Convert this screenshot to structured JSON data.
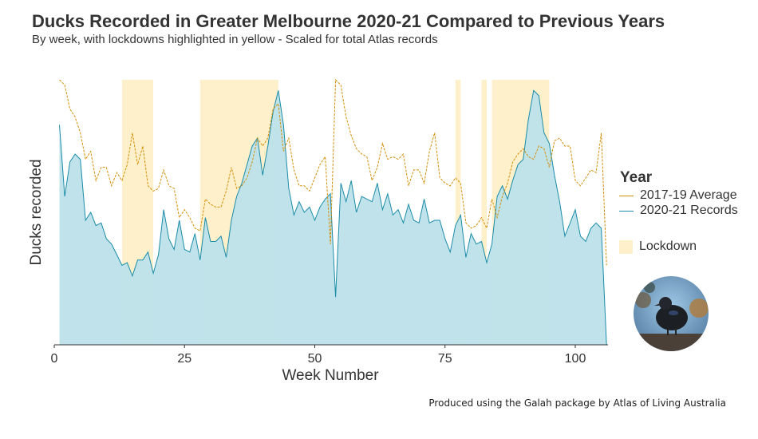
{
  "title": "Ducks Recorded in Greater Melbourne 2020-21 Compared to Previous Years",
  "subtitle": "By week, with lockdowns highlighted in yellow - Scaled for total Atlas records",
  "caption": "Produced using the Galah package by Atlas of Living Australia",
  "legend": {
    "title": "Year",
    "avg_label": "2017-19 Average",
    "records_label": "2020-21 Records",
    "lockdown_label": "Lockdown"
  },
  "colors": {
    "average_line": "#D4900A",
    "records_line": "#1A8CA8",
    "records_fill": "#BDE2EA",
    "lockdown": "#FFF0CC"
  },
  "chart_data": {
    "type": "area",
    "xlabel": "Week Number",
    "ylabel": "Ducks recorded",
    "xlim": [
      0,
      106
    ],
    "ylim": [
      0,
      100
    ],
    "x_ticks": [
      0,
      25,
      50,
      75,
      100
    ],
    "y_ticks_shown": false,
    "grid": false,
    "legend_position": "right",
    "lockdowns": [
      [
        13,
        19
      ],
      [
        28,
        43
      ],
      [
        77,
        78
      ],
      [
        82,
        83
      ],
      [
        84,
        95
      ]
    ],
    "series": [
      {
        "name": "2020-21 Records",
        "x": [
          1,
          2,
          3,
          4,
          5,
          6,
          7,
          8,
          9,
          10,
          11,
          12,
          13,
          14,
          15,
          16,
          17,
          18,
          19,
          20,
          21,
          22,
          23,
          24,
          25,
          26,
          27,
          28,
          29,
          30,
          31,
          32,
          33,
          34,
          35,
          36,
          37,
          38,
          39,
          40,
          41,
          42,
          43,
          44,
          45,
          46,
          47,
          48,
          49,
          50,
          51,
          52,
          53,
          54,
          55,
          56,
          57,
          58,
          59,
          60,
          61,
          62,
          63,
          64,
          65,
          66,
          67,
          68,
          69,
          70,
          71,
          72,
          73,
          74,
          75,
          76,
          77,
          78,
          79,
          80,
          81,
          82,
          83,
          84,
          85,
          86,
          87,
          88,
          89,
          90,
          91,
          92,
          93,
          94,
          95,
          96,
          97,
          98,
          99,
          100,
          101,
          102,
          103,
          104,
          105,
          106
        ],
        "values": [
          83,
          56,
          69,
          72,
          70,
          47,
          50,
          45,
          46,
          40,
          38,
          34,
          30,
          31,
          26,
          32,
          32,
          35,
          27,
          34,
          51,
          40,
          36,
          47,
          36,
          35,
          42,
          32,
          48,
          39,
          39,
          41,
          33,
          47,
          56,
          61,
          68,
          75,
          78,
          64,
          75,
          88,
          96,
          83,
          59,
          49,
          54,
          50,
          52,
          47,
          52,
          55,
          57,
          18,
          61,
          54,
          62,
          50,
          56,
          55,
          54,
          61,
          51,
          57,
          49,
          51,
          46,
          53,
          47,
          46,
          55,
          46,
          47,
          47,
          40,
          35,
          45,
          49,
          33,
          42,
          38,
          39,
          31,
          38,
          56,
          60,
          55,
          62,
          68,
          70,
          85,
          96,
          94,
          80,
          76,
          64,
          54,
          41,
          46,
          51,
          41,
          39,
          44,
          46,
          44,
          0
        ]
      },
      {
        "name": "2017-19 Average",
        "x": [
          1,
          2,
          3,
          4,
          5,
          6,
          7,
          8,
          9,
          10,
          11,
          12,
          13,
          14,
          15,
          16,
          17,
          18,
          19,
          20,
          21,
          22,
          23,
          24,
          25,
          26,
          27,
          28,
          29,
          30,
          31,
          32,
          33,
          34,
          35,
          36,
          37,
          38,
          39,
          40,
          41,
          42,
          43,
          44,
          45,
          46,
          47,
          48,
          49,
          50,
          51,
          52,
          53,
          54,
          55,
          56,
          57,
          58,
          59,
          60,
          61,
          62,
          63,
          64,
          65,
          66,
          67,
          68,
          69,
          70,
          71,
          72,
          73,
          74,
          75,
          76,
          77,
          78,
          79,
          80,
          81,
          82,
          83,
          84,
          85,
          86,
          87,
          88,
          89,
          90,
          91,
          92,
          93,
          94,
          95,
          96,
          97,
          98,
          99,
          100,
          101,
          102,
          103,
          104,
          105,
          106
        ],
        "values": [
          100,
          98,
          89,
          86,
          80,
          70,
          73,
          62,
          67,
          67,
          60,
          65,
          62,
          68,
          80,
          68,
          75,
          60,
          58,
          59,
          66,
          60,
          59,
          48,
          51,
          48,
          44,
          43,
          55,
          53,
          52,
          52,
          58,
          67,
          59,
          60,
          63,
          69,
          78,
          75,
          78,
          89,
          91,
          73,
          78,
          66,
          60,
          60,
          58,
          63,
          68,
          71,
          38,
          100,
          98,
          86,
          79,
          74,
          72,
          71,
          62,
          67,
          76,
          70,
          71,
          70,
          72,
          60,
          66,
          66,
          61,
          73,
          80,
          63,
          61,
          60,
          63,
          61,
          46,
          44,
          45,
          48,
          44,
          55,
          48,
          56,
          61,
          69,
          72,
          74,
          71,
          70,
          75,
          74,
          67,
          77,
          78,
          75,
          75,
          62,
          60,
          63,
          66,
          65,
          80,
          30
        ]
      }
    ]
  }
}
